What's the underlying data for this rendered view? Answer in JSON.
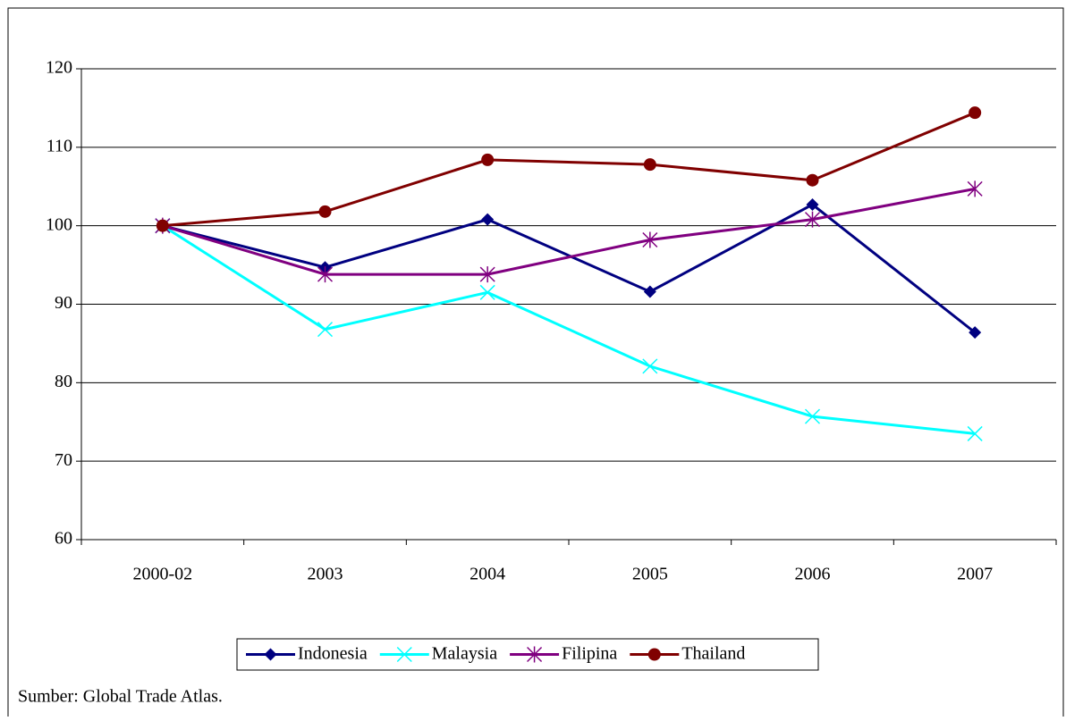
{
  "chart_data": {
    "type": "line",
    "categories": [
      "2000-02",
      "2003",
      "2004",
      "2005",
      "2006",
      "2007"
    ],
    "series": [
      {
        "name": "Indonesia",
        "color": "#000080",
        "marker": "diamond",
        "values": [
          100,
          94.7,
          100.8,
          91.6,
          102.7,
          86.4
        ]
      },
      {
        "name": "Malaysia",
        "color": "#00ffff",
        "marker": "x",
        "values": [
          100,
          86.8,
          91.5,
          82.1,
          75.7,
          73.5
        ]
      },
      {
        "name": "Filipina",
        "color": "#800080",
        "marker": "asterisk",
        "values": [
          100,
          93.8,
          93.8,
          98.2,
          100.8,
          104.7
        ]
      },
      {
        "name": "Thailand",
        "color": "#800000",
        "marker": "circle",
        "values": [
          100,
          101.8,
          108.4,
          107.8,
          105.8,
          114.4
        ]
      }
    ],
    "ylim": [
      60,
      120
    ],
    "yticks": [
      60,
      70,
      80,
      90,
      100,
      110,
      120
    ],
    "grid": true,
    "legend": "bottom",
    "source": "Sumber: Global Trade Atlas."
  }
}
